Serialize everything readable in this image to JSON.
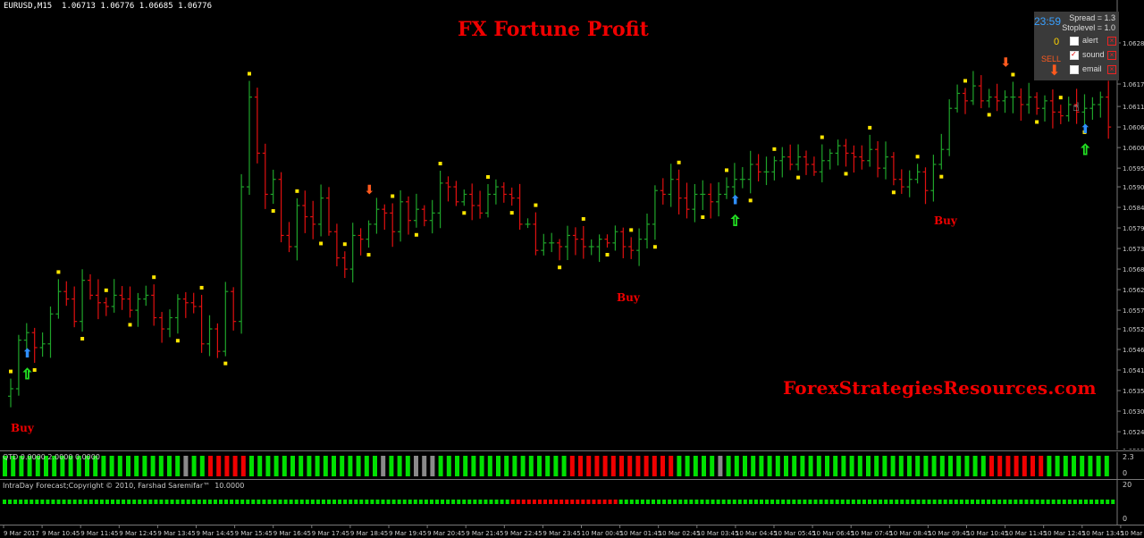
{
  "window": {
    "symbol_info": "EURUSD,M15  1.06713 1.06776 1.06685 1.06776"
  },
  "overlay": {
    "title": "FX Fortune Profit",
    "watermark": "ForexStrategiesResources.com",
    "buy_label": "Buy"
  },
  "panel": {
    "clock": "23:59",
    "spread": "Spread = 1.3",
    "stoplevel": "Stoplevel = 1.0",
    "zero": "0",
    "sell": "SELL",
    "alert": "alert",
    "sound": "sound",
    "email": "email",
    "close_mark": "×",
    "check_mark": "✓",
    "arrow_mark": "⬇",
    "hand_mark": "☝"
  },
  "indicators": {
    "qtd_label": "QTD 0.0000 2.0000 0.0000",
    "qtd_scale_top": "2.3",
    "qtd_scale_bottom": "0",
    "intraday_label": "IntraDay Forecast;Copyright © 2010, Farshad Saremifar™  10.0000",
    "intraday_scale_top": "20",
    "intraday_scale_bottom": "0"
  },
  "colors": {
    "bull": "#1fa32a",
    "bear": "#e01010",
    "gray": "#8a8a8a",
    "dot": "#ffe600",
    "buy_arrow": "#2f8fff",
    "sell_arrow": "#ff5a1e",
    "hollow_arrow": "#22dd22"
  },
  "chart_data": {
    "type": "candlestick",
    "symbol": "EURUSD",
    "timeframe": "M15",
    "y_axis_labels": [
      "1.06285",
      "1.06175",
      "1.06115",
      "1.06060",
      "1.06005",
      "1.05950",
      "1.05900",
      "1.05845",
      "1.05790",
      "1.05735",
      "1.05680",
      "1.05625",
      "1.05570",
      "1.05520",
      "1.05465",
      "1.05410",
      "1.05355",
      "1.05300",
      "1.05245",
      "1.05195"
    ],
    "x_axis_labels": [
      "9 Mar 2017",
      "9 Mar 10:45",
      "9 Mar 11:45",
      "9 Mar 12:45",
      "9 Mar 13:45",
      "9 Mar 14:45",
      "9 Mar 15:45",
      "9 Mar 16:45",
      "9 Mar 17:45",
      "9 Mar 18:45",
      "9 Mar 19:45",
      "9 Mar 20:45",
      "9 Mar 21:45",
      "9 Mar 22:45",
      "9 Mar 23:45",
      "10 Mar 00:45",
      "10 Mar 01:45",
      "10 Mar 02:45",
      "10 Mar 03:45",
      "10 Mar 04:45",
      "10 Mar 05:45",
      "10 Mar 06:45",
      "10 Mar 07:45",
      "10 Mar 08:45",
      "10 Mar 09:45",
      "10 Mar 10:45",
      "10 Mar 11:45",
      "10 Mar 12:45",
      "10 Mar 13:45",
      "10 Mar 14:45"
    ],
    "price_path": [
      1.0536,
      1.0549,
      1.0551,
      1.0547,
      1.0548,
      1.0556,
      1.0562,
      1.056,
      1.0554,
      1.0565,
      1.0561,
      1.0559,
      1.0558,
      1.0561,
      1.056,
      1.0557,
      1.056,
      1.0561,
      1.0555,
      1.0552,
      1.0555,
      1.056,
      1.0559,
      1.0558,
      1.0548,
      1.0552,
      1.0546,
      1.0562,
      1.0554,
      1.059,
      1.0614,
      1.0599,
      1.0588,
      1.0592,
      1.0577,
      1.0574,
      1.0585,
      1.0582,
      1.058,
      1.0587,
      1.0578,
      1.0571,
      1.0568,
      1.0577,
      1.0576,
      1.058,
      1.0584,
      1.0583,
      1.0578,
      1.0586,
      1.0581,
      1.0584,
      1.0581,
      1.0583,
      1.0591,
      1.059,
      1.0586,
      1.0588,
      1.0585,
      1.0583,
      1.0588,
      1.059,
      1.0588,
      1.0587,
      1.058,
      1.058,
      1.0573,
      1.0575,
      1.0575,
      1.0574,
      1.0577,
      1.0576,
      1.0574,
      1.0574,
      1.0576,
      1.0575,
      1.0578,
      1.0574,
      1.0573,
      1.0576,
      1.058,
      1.0589,
      1.0588,
      1.0592,
      1.0587,
      1.0584,
      1.0588,
      1.0588,
      1.0586,
      1.0588,
      1.059,
      1.0592,
      1.0592,
      1.0596,
      1.0594,
      1.0594,
      1.0597,
      1.0598,
      1.0596,
      1.0598,
      1.0596,
      1.0594,
      1.0597,
      1.0599,
      1.0601,
      1.0599,
      1.0598,
      1.0597,
      1.06,
      1.0595,
      1.0598,
      1.0592,
      1.059,
      1.0592,
      1.0594,
      1.0589,
      1.0596,
      1.06,
      1.0611,
      1.0615,
      1.0613,
      1.0617,
      1.0613,
      1.0614,
      1.0613,
      1.0614,
      1.0614,
      1.0612,
      1.0614,
      1.0611,
      1.0613,
      1.061,
      1.0609,
      1.0612,
      1.061,
      1.0611,
      1.0612,
      1.0614,
      1.0606
    ],
    "signals": [
      {
        "type": "buy",
        "label": "Buy",
        "bar": 2
      },
      {
        "type": "buy",
        "label": "Buy",
        "bar": 91
      },
      {
        "type": "buy",
        "label": "Buy",
        "bar": 135
      },
      {
        "type": "sell",
        "bar": 45
      },
      {
        "type": "sell",
        "bar": 125
      }
    ]
  }
}
